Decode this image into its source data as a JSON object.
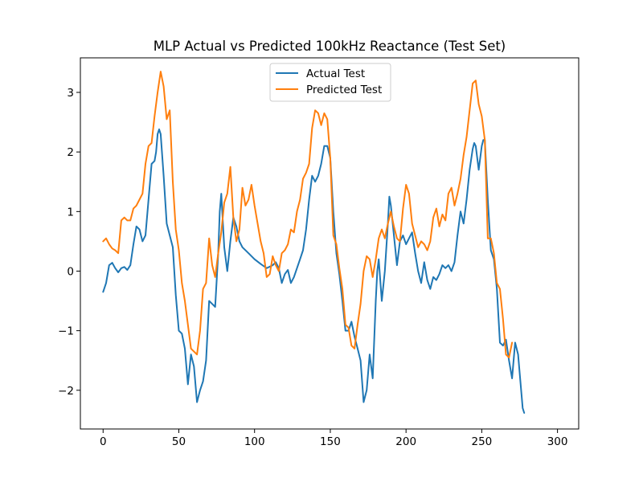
{
  "chart_data": {
    "type": "line",
    "title": "MLP Actual vs Predicted 100kHz Reactance (Test Set)",
    "xlabel": "",
    "ylabel": "",
    "xlim": [
      -15,
      314
    ],
    "ylim": [
      -2.65,
      3.58
    ],
    "xticks": [
      0,
      50,
      100,
      150,
      200,
      250,
      300
    ],
    "yticks": [
      -2,
      -1,
      0,
      1,
      2,
      3
    ],
    "grid": false,
    "legend_position": "upper center",
    "series": [
      {
        "name": "Actual Test",
        "color": "#1f77b4",
        "points": [
          [
            0,
            -0.35
          ],
          [
            2,
            -0.2
          ],
          [
            4,
            0.1
          ],
          [
            6,
            0.14
          ],
          [
            8,
            0.05
          ],
          [
            10,
            -0.02
          ],
          [
            12,
            0.05
          ],
          [
            14,
            0.07
          ],
          [
            16,
            0.02
          ],
          [
            18,
            0.1
          ],
          [
            20,
            0.45
          ],
          [
            22,
            0.75
          ],
          [
            24,
            0.7
          ],
          [
            26,
            0.5
          ],
          [
            28,
            0.6
          ],
          [
            30,
            1.2
          ],
          [
            32,
            1.8
          ],
          [
            34,
            1.85
          ],
          [
            35,
            2.0
          ],
          [
            36,
            2.3
          ],
          [
            37,
            2.38
          ],
          [
            38,
            2.3
          ],
          [
            40,
            1.6
          ],
          [
            42,
            0.8
          ],
          [
            44,
            0.6
          ],
          [
            46,
            0.4
          ],
          [
            48,
            -0.4
          ],
          [
            50,
            -1.0
          ],
          [
            52,
            -1.05
          ],
          [
            54,
            -1.3
          ],
          [
            56,
            -1.9
          ],
          [
            58,
            -1.4
          ],
          [
            60,
            -1.6
          ],
          [
            62,
            -2.2
          ],
          [
            64,
            -2.0
          ],
          [
            66,
            -1.85
          ],
          [
            68,
            -1.5
          ],
          [
            70,
            -0.5
          ],
          [
            72,
            -0.55
          ],
          [
            74,
            -0.6
          ],
          [
            76,
            0.3
          ],
          [
            77,
            1.0
          ],
          [
            78,
            1.3
          ],
          [
            80,
            0.4
          ],
          [
            82,
            0.0
          ],
          [
            84,
            0.5
          ],
          [
            86,
            0.9
          ],
          [
            88,
            0.75
          ],
          [
            90,
            0.5
          ],
          [
            92,
            0.4
          ],
          [
            96,
            0.3
          ],
          [
            100,
            0.2
          ],
          [
            104,
            0.12
          ],
          [
            108,
            0.05
          ],
          [
            112,
            0.1
          ],
          [
            114,
            0.15
          ],
          [
            116,
            0.05
          ],
          [
            118,
            -0.2
          ],
          [
            120,
            -0.05
          ],
          [
            122,
            0.02
          ],
          [
            124,
            -0.2
          ],
          [
            126,
            -0.1
          ],
          [
            128,
            0.05
          ],
          [
            130,
            0.2
          ],
          [
            132,
            0.35
          ],
          [
            134,
            0.7
          ],
          [
            136,
            1.2
          ],
          [
            138,
            1.6
          ],
          [
            140,
            1.5
          ],
          [
            142,
            1.6
          ],
          [
            144,
            1.8
          ],
          [
            146,
            2.1
          ],
          [
            148,
            2.1
          ],
          [
            150,
            1.9
          ],
          [
            152,
            1.0
          ],
          [
            154,
            0.3
          ],
          [
            156,
            -0.05
          ],
          [
            158,
            -0.5
          ],
          [
            160,
            -1.0
          ],
          [
            162,
            -1.0
          ],
          [
            164,
            -0.85
          ],
          [
            166,
            -1.1
          ],
          [
            168,
            -1.3
          ],
          [
            170,
            -1.5
          ],
          [
            172,
            -2.2
          ],
          [
            174,
            -2.0
          ],
          [
            176,
            -1.4
          ],
          [
            178,
            -1.8
          ],
          [
            180,
            -0.5
          ],
          [
            181,
            0.0
          ],
          [
            182,
            0.2
          ],
          [
            184,
            -0.5
          ],
          [
            186,
            0.0
          ],
          [
            188,
            0.8
          ],
          [
            189,
            1.25
          ],
          [
            190,
            1.1
          ],
          [
            192,
            0.6
          ],
          [
            194,
            0.1
          ],
          [
            196,
            0.5
          ],
          [
            198,
            0.6
          ],
          [
            200,
            0.45
          ],
          [
            202,
            0.55
          ],
          [
            204,
            0.65
          ],
          [
            206,
            0.3
          ],
          [
            208,
            0.0
          ],
          [
            210,
            -0.2
          ],
          [
            212,
            0.15
          ],
          [
            214,
            -0.15
          ],
          [
            216,
            -0.3
          ],
          [
            218,
            -0.1
          ],
          [
            220,
            -0.15
          ],
          [
            222,
            -0.05
          ],
          [
            224,
            0.1
          ],
          [
            226,
            0.05
          ],
          [
            228,
            0.1
          ],
          [
            230,
            0.0
          ],
          [
            232,
            0.15
          ],
          [
            234,
            0.6
          ],
          [
            236,
            1.0
          ],
          [
            238,
            0.8
          ],
          [
            240,
            1.2
          ],
          [
            242,
            1.7
          ],
          [
            244,
            2.05
          ],
          [
            245,
            2.15
          ],
          [
            246,
            2.1
          ],
          [
            248,
            1.7
          ],
          [
            250,
            2.1
          ],
          [
            251,
            2.2
          ],
          [
            252,
            2.2
          ],
          [
            254,
            1.2
          ],
          [
            256,
            0.35
          ],
          [
            258,
            0.2
          ],
          [
            260,
            -0.3
          ],
          [
            262,
            -1.2
          ],
          [
            264,
            -1.25
          ],
          [
            266,
            -1.15
          ],
          [
            268,
            -1.5
          ],
          [
            270,
            -1.8
          ],
          [
            272,
            -1.2
          ],
          [
            274,
            -1.4
          ],
          [
            276,
            -2.0
          ],
          [
            277,
            -2.3
          ],
          [
            278,
            -2.38
          ]
        ]
      },
      {
        "name": "Predicted Test",
        "color": "#ff7f0e",
        "points": [
          [
            0,
            0.5
          ],
          [
            2,
            0.55
          ],
          [
            4,
            0.45
          ],
          [
            6,
            0.38
          ],
          [
            8,
            0.35
          ],
          [
            10,
            0.3
          ],
          [
            12,
            0.85
          ],
          [
            14,
            0.9
          ],
          [
            16,
            0.85
          ],
          [
            18,
            0.85
          ],
          [
            20,
            1.05
          ],
          [
            22,
            1.1
          ],
          [
            24,
            1.2
          ],
          [
            26,
            1.3
          ],
          [
            28,
            1.8
          ],
          [
            30,
            2.1
          ],
          [
            32,
            2.15
          ],
          [
            34,
            2.6
          ],
          [
            36,
            3.0
          ],
          [
            38,
            3.35
          ],
          [
            40,
            3.1
          ],
          [
            42,
            2.55
          ],
          [
            44,
            2.7
          ],
          [
            46,
            1.5
          ],
          [
            48,
            0.7
          ],
          [
            50,
            0.35
          ],
          [
            52,
            -0.2
          ],
          [
            54,
            -0.5
          ],
          [
            56,
            -0.9
          ],
          [
            58,
            -1.3
          ],
          [
            60,
            -1.35
          ],
          [
            62,
            -1.4
          ],
          [
            64,
            -1.0
          ],
          [
            66,
            -0.3
          ],
          [
            68,
            -0.2
          ],
          [
            70,
            0.55
          ],
          [
            72,
            0.1
          ],
          [
            74,
            -0.1
          ],
          [
            76,
            0.3
          ],
          [
            78,
            0.65
          ],
          [
            80,
            1.15
          ],
          [
            82,
            1.3
          ],
          [
            84,
            1.75
          ],
          [
            86,
            0.9
          ],
          [
            88,
            0.5
          ],
          [
            90,
            0.7
          ],
          [
            92,
            1.4
          ],
          [
            94,
            1.1
          ],
          [
            96,
            1.2
          ],
          [
            98,
            1.45
          ],
          [
            100,
            1.1
          ],
          [
            102,
            0.8
          ],
          [
            104,
            0.5
          ],
          [
            106,
            0.3
          ],
          [
            108,
            -0.1
          ],
          [
            110,
            -0.05
          ],
          [
            112,
            0.25
          ],
          [
            114,
            0.1
          ],
          [
            116,
            0.0
          ],
          [
            118,
            0.3
          ],
          [
            120,
            0.35
          ],
          [
            122,
            0.45
          ],
          [
            124,
            0.7
          ],
          [
            126,
            0.65
          ],
          [
            128,
            1.0
          ],
          [
            130,
            1.2
          ],
          [
            132,
            1.55
          ],
          [
            134,
            1.65
          ],
          [
            136,
            1.8
          ],
          [
            138,
            2.4
          ],
          [
            140,
            2.7
          ],
          [
            142,
            2.65
          ],
          [
            144,
            2.45
          ],
          [
            146,
            2.65
          ],
          [
            148,
            2.55
          ],
          [
            150,
            1.9
          ],
          [
            152,
            0.6
          ],
          [
            154,
            0.45
          ],
          [
            156,
            0.05
          ],
          [
            158,
            -0.3
          ],
          [
            160,
            -0.9
          ],
          [
            162,
            -0.95
          ],
          [
            164,
            -1.25
          ],
          [
            166,
            -1.3
          ],
          [
            168,
            -0.9
          ],
          [
            170,
            -0.55
          ],
          [
            172,
            0.0
          ],
          [
            174,
            0.25
          ],
          [
            176,
            0.2
          ],
          [
            178,
            -0.1
          ],
          [
            180,
            0.2
          ],
          [
            182,
            0.55
          ],
          [
            184,
            0.7
          ],
          [
            186,
            0.55
          ],
          [
            188,
            0.8
          ],
          [
            190,
            1.0
          ],
          [
            192,
            0.75
          ],
          [
            194,
            0.55
          ],
          [
            196,
            0.5
          ],
          [
            198,
            1.05
          ],
          [
            200,
            1.45
          ],
          [
            202,
            1.3
          ],
          [
            204,
            0.8
          ],
          [
            206,
            0.6
          ],
          [
            208,
            0.4
          ],
          [
            210,
            0.5
          ],
          [
            212,
            0.45
          ],
          [
            214,
            0.35
          ],
          [
            216,
            0.5
          ],
          [
            218,
            0.9
          ],
          [
            220,
            1.05
          ],
          [
            222,
            0.75
          ],
          [
            224,
            0.95
          ],
          [
            226,
            0.85
          ],
          [
            228,
            1.3
          ],
          [
            230,
            1.4
          ],
          [
            232,
            1.1
          ],
          [
            234,
            1.3
          ],
          [
            236,
            1.55
          ],
          [
            238,
            1.95
          ],
          [
            240,
            2.25
          ],
          [
            242,
            2.7
          ],
          [
            244,
            3.15
          ],
          [
            246,
            3.2
          ],
          [
            248,
            2.8
          ],
          [
            250,
            2.6
          ],
          [
            252,
            2.2
          ],
          [
            254,
            0.55
          ],
          [
            256,
            0.55
          ],
          [
            258,
            0.3
          ],
          [
            260,
            -0.2
          ],
          [
            262,
            -0.3
          ],
          [
            264,
            -0.8
          ],
          [
            266,
            -1.4
          ],
          [
            268,
            -1.45
          ],
          [
            270,
            -1.2
          ]
        ]
      }
    ]
  }
}
